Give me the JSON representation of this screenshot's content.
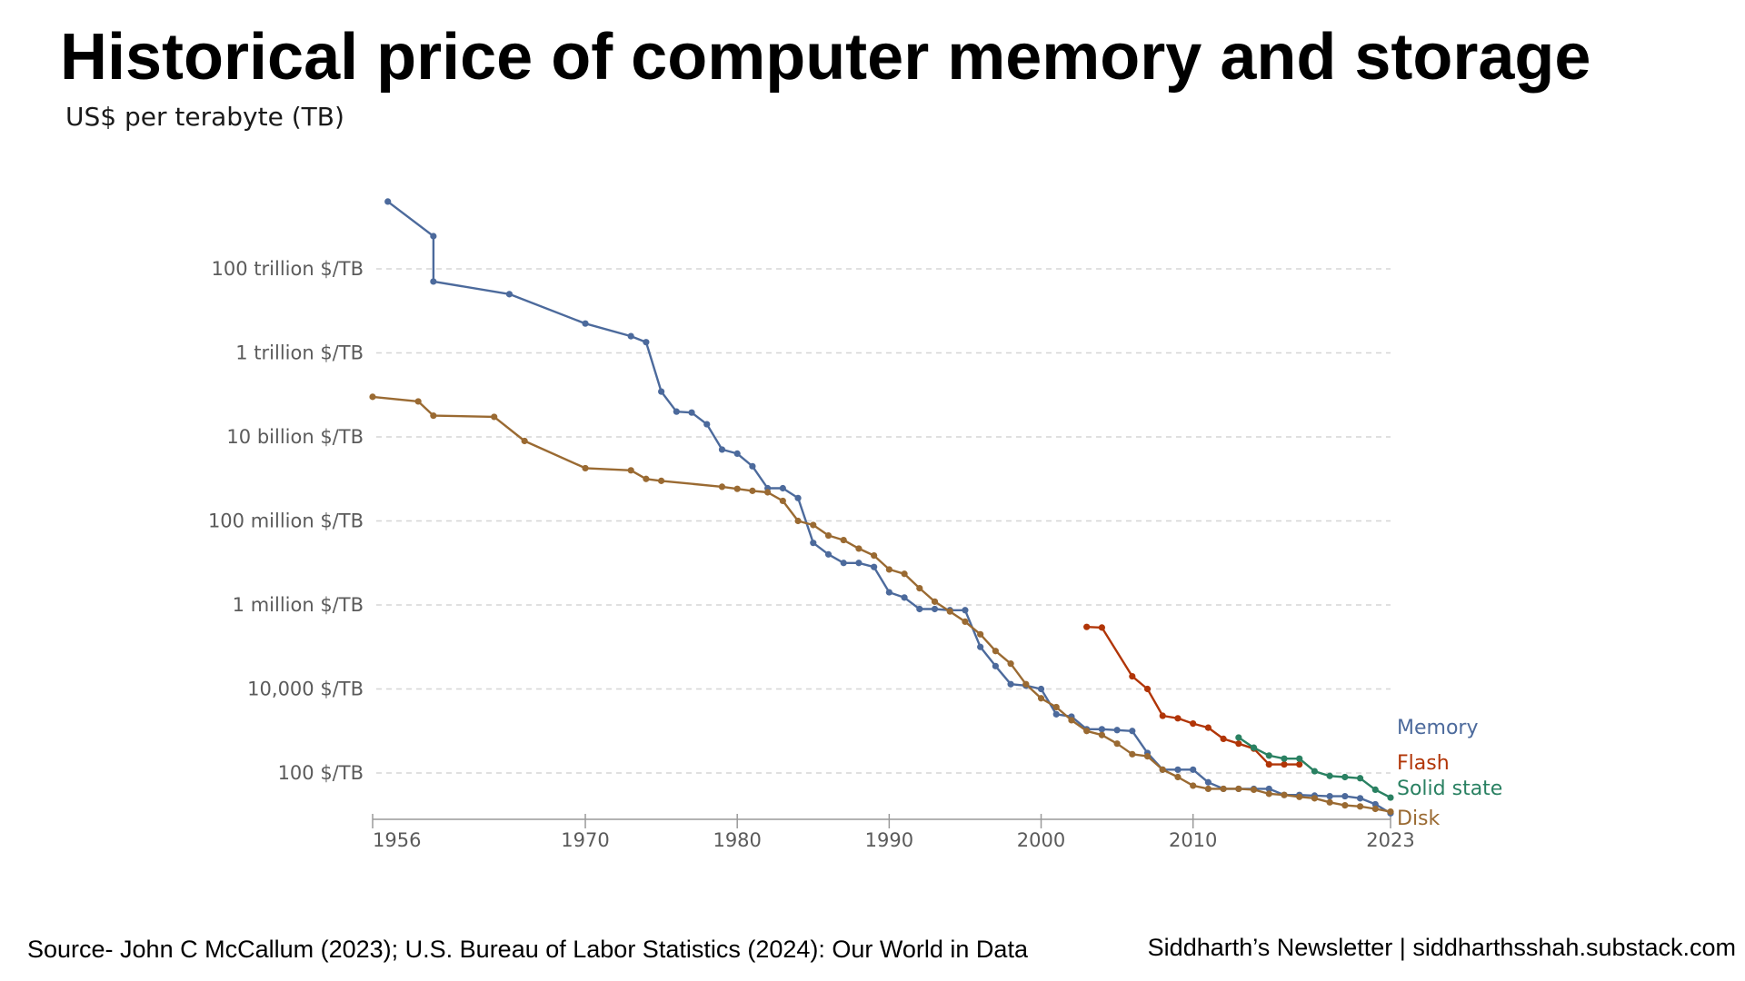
{
  "title": "Historical price of computer memory and storage",
  "subtitle": "US$ per terabyte (TB)",
  "footer": {
    "source": "Source- John C McCallum (2023); U.S. Bureau of Labor Statistics (2024): Our World in Data",
    "credit": "Siddharth’s Newsletter | siddharthsshah.substack.com"
  },
  "chart_data": {
    "type": "line",
    "y_scale": "log",
    "ylim": [
      10.0,
      1e+16
    ],
    "xlim": [
      1956,
      2023
    ],
    "grid": true,
    "y_ticks": [
      {
        "value": 100,
        "label": "100 $/TB"
      },
      {
        "value": 10000,
        "label": "10,000 $/TB"
      },
      {
        "value": 1000000,
        "label": "1 million $/TB"
      },
      {
        "value": 100000000,
        "label": "100 million $/TB"
      },
      {
        "value": 10000000000,
        "label": "10 billion $/TB"
      },
      {
        "value": 1000000000000,
        "label": "1 trillion $/TB"
      },
      {
        "value": 100000000000000,
        "label": "100 trillion $/TB"
      }
    ],
    "x_ticks": [
      {
        "value": 1956,
        "label": "1956"
      },
      {
        "value": 1970,
        "label": "1970"
      },
      {
        "value": 1980,
        "label": "1980"
      },
      {
        "value": 1990,
        "label": "1990"
      },
      {
        "value": 2000,
        "label": "2000"
      },
      {
        "value": 2010,
        "label": "2010"
      },
      {
        "value": 2023,
        "label": "2023"
      }
    ],
    "series": [
      {
        "name": "Memory",
        "color": "#4c6a9c",
        "points": [
          [
            1957,
            4000000000000000.0
          ],
          [
            1960,
            600000000000000.0
          ],
          [
            1960,
            50000000000000.0
          ],
          [
            1965,
            25000000000000.0
          ],
          [
            1970,
            5000000000000.0
          ],
          [
            1973,
            2500000000000.0
          ],
          [
            1974,
            1800000000000.0
          ],
          [
            1975,
            120000000000.0
          ],
          [
            1976,
            40000000000.0
          ],
          [
            1977,
            38000000000.0
          ],
          [
            1978,
            20000000000.0
          ],
          [
            1979,
            5000000000.0
          ],
          [
            1980,
            4000000000.0
          ],
          [
            1981,
            2000000000.0
          ],
          [
            1982,
            600000000.0
          ],
          [
            1983,
            600000000.0
          ],
          [
            1984,
            350000000.0
          ],
          [
            1985,
            30000000.0
          ],
          [
            1986,
            16000000.0
          ],
          [
            1987,
            10000000.0
          ],
          [
            1988,
            10000000.0
          ],
          [
            1989,
            8000000.0
          ],
          [
            1990,
            2000000.0
          ],
          [
            1991,
            1500000.0
          ],
          [
            1992,
            800000.0
          ],
          [
            1993,
            800000.0
          ],
          [
            1994,
            750000.0
          ],
          [
            1995,
            750000.0
          ],
          [
            1996,
            100000.0
          ],
          [
            1997,
            35000.0
          ],
          [
            1998,
            13000.0
          ],
          [
            1999,
            12000.0
          ],
          [
            2000,
            10000.0
          ],
          [
            2001,
            2500.0
          ],
          [
            2002,
            2200.0
          ],
          [
            2003,
            1100.0
          ],
          [
            2004,
            1100.0
          ],
          [
            2005,
            1050.0
          ],
          [
            2006,
            1000.0
          ],
          [
            2007,
            300
          ],
          [
            2008,
            120
          ],
          [
            2009,
            120
          ],
          [
            2010,
            120
          ],
          [
            2011,
            60
          ],
          [
            2012,
            42
          ],
          [
            2013,
            42
          ],
          [
            2014,
            42
          ],
          [
            2015,
            42
          ],
          [
            2016,
            30
          ],
          [
            2017,
            30
          ],
          [
            2018,
            29
          ],
          [
            2019,
            28
          ],
          [
            2020,
            28
          ],
          [
            2021,
            25
          ],
          [
            2022,
            18
          ],
          [
            2023,
            11
          ]
        ]
      },
      {
        "name": "Flash",
        "color": "#b13507",
        "points": [
          [
            2003,
            300000.0
          ],
          [
            2004,
            290000.0
          ],
          [
            2006,
            20000.0
          ],
          [
            2007,
            10000.0
          ],
          [
            2008,
            2300.0
          ],
          [
            2009,
            2000.0
          ],
          [
            2010,
            1500.0
          ],
          [
            2011,
            1200.0
          ],
          [
            2012,
            650
          ],
          [
            2013,
            500
          ],
          [
            2014,
            380
          ],
          [
            2015,
            160
          ],
          [
            2016,
            160
          ],
          [
            2017,
            160
          ]
        ]
      },
      {
        "name": "Solid state",
        "color": "#2a8162",
        "points": [
          [
            2013,
            700
          ],
          [
            2014,
            400
          ],
          [
            2015,
            260
          ],
          [
            2016,
            220
          ],
          [
            2017,
            220
          ],
          [
            2018,
            110
          ],
          [
            2019,
            85
          ],
          [
            2020,
            80
          ],
          [
            2021,
            75
          ],
          [
            2022,
            40
          ],
          [
            2023,
            26
          ]
        ]
      },
      {
        "name": "Disk",
        "color": "#9a6a32",
        "points": [
          [
            1956,
            90000000000.0
          ],
          [
            1959,
            70000000000.0
          ],
          [
            1960,
            32000000000.0
          ],
          [
            1964,
            30000000000.0
          ],
          [
            1966,
            8000000000.0
          ],
          [
            1970,
            1800000000.0
          ],
          [
            1973,
            1600000000.0
          ],
          [
            1974,
            1000000000.0
          ],
          [
            1975,
            900000000.0
          ],
          [
            1979,
            650000000.0
          ],
          [
            1980,
            580000000.0
          ],
          [
            1981,
            520000000.0
          ],
          [
            1982,
            480000000.0
          ],
          [
            1983,
            300000000.0
          ],
          [
            1984,
            100000000.0
          ],
          [
            1985,
            80000000.0
          ],
          [
            1986,
            45000000.0
          ],
          [
            1987,
            35000000.0
          ],
          [
            1988,
            22000000.0
          ],
          [
            1989,
            15000000.0
          ],
          [
            1990,
            7000000.0
          ],
          [
            1991,
            5500000.0
          ],
          [
            1992,
            2500000.0
          ],
          [
            1993,
            1200000.0
          ],
          [
            1994,
            700000.0
          ],
          [
            1995,
            400000.0
          ],
          [
            1996,
            200000.0
          ],
          [
            1997,
            80000.0
          ],
          [
            1998,
            40000.0
          ],
          [
            1999,
            13000.0
          ],
          [
            2000,
            6000.0
          ],
          [
            2001,
            3700.0
          ],
          [
            2002,
            1800.0
          ],
          [
            2003,
            1000.0
          ],
          [
            2004,
            800
          ],
          [
            2005,
            500
          ],
          [
            2006,
            280
          ],
          [
            2007,
            250
          ],
          [
            2008,
            120
          ],
          [
            2009,
            80
          ],
          [
            2010,
            50
          ],
          [
            2011,
            42
          ],
          [
            2012,
            42
          ],
          [
            2013,
            42
          ],
          [
            2014,
            40
          ],
          [
            2015,
            32
          ],
          [
            2016,
            30
          ],
          [
            2017,
            27
          ],
          [
            2018,
            25
          ],
          [
            2019,
            20
          ],
          [
            2020,
            17
          ],
          [
            2021,
            16
          ],
          [
            2022,
            14
          ],
          [
            2023,
            12
          ]
        ]
      }
    ]
  }
}
